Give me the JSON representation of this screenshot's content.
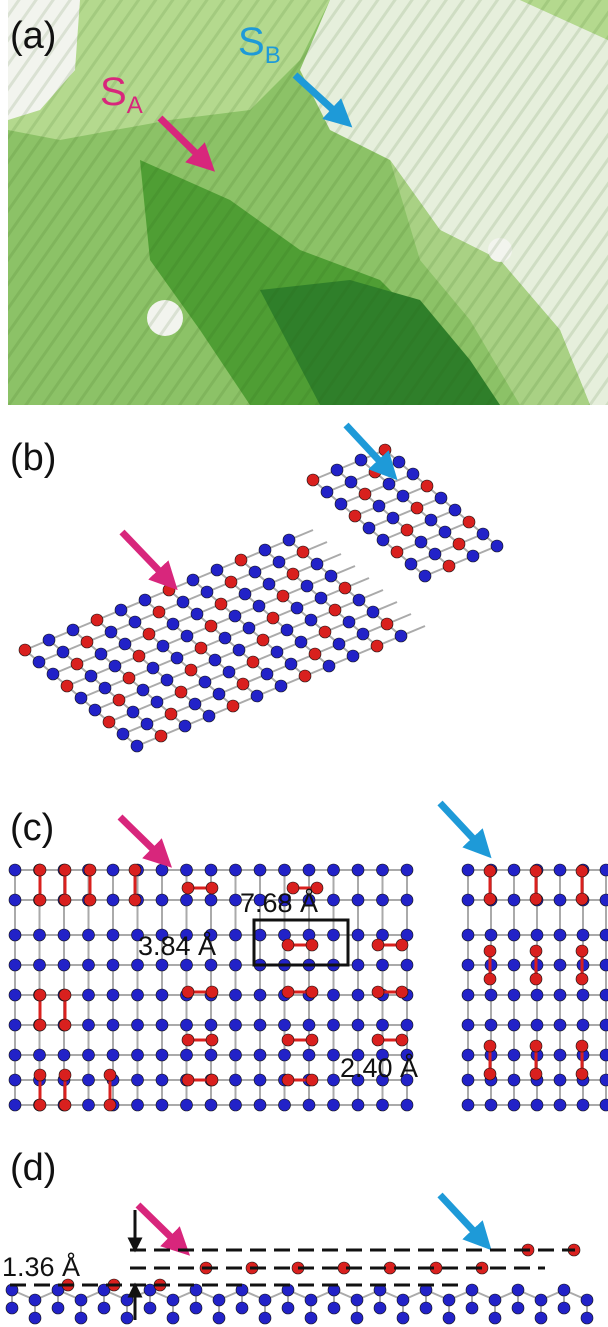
{
  "panels": [
    {
      "label": "(a)",
      "site_a": {
        "letter": "S",
        "subscript": "A"
      },
      "site_b": {
        "letter": "S",
        "subscript": "B"
      }
    },
    {
      "label": "(b)"
    },
    {
      "label": "(c)",
      "dimensions": [
        "7.68 Å",
        "3.84 Å",
        "2.40 Å"
      ]
    },
    {
      "label": "(d)",
      "dimensions": [
        "1.36 Å"
      ]
    }
  ]
}
